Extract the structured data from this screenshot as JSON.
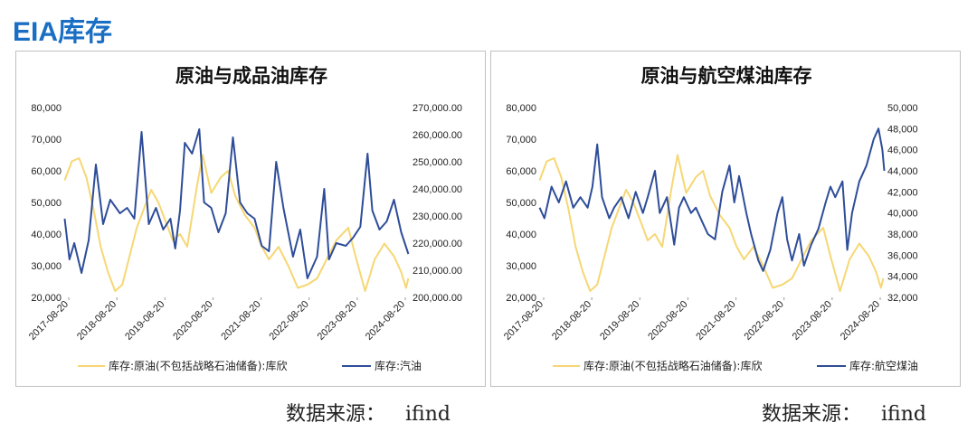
{
  "page": {
    "title": "EIA库存",
    "source_label": "数据来源：",
    "source_value": "ifind"
  },
  "colors": {
    "accent": "#1a6fc4",
    "crude": "#f6d774",
    "secondary": "#2e4d99"
  },
  "chart_data": [
    {
      "type": "line",
      "title": "原油与成品油库存",
      "x_ticks": [
        "2017-08-20",
        "2018-08-20",
        "2019-08-20",
        "2020-08-20",
        "2021-08-20",
        "2022-08-20",
        "2023-08-20",
        "2024-08-20"
      ],
      "y_left": {
        "lim": [
          20000,
          80000
        ],
        "ticks": [
          "20,000",
          "30,000",
          "40,000",
          "50,000",
          "60,000",
          "70,000",
          "80,000"
        ]
      },
      "y_right": {
        "lim": [
          200000,
          270000
        ],
        "ticks": [
          "200,000.00",
          "210,000.00",
          "220,000.00",
          "230,000.00",
          "240,000.00",
          "250,000.00",
          "260,000.00",
          "270,000.00"
        ]
      },
      "legend_position": "bottom",
      "series": [
        {
          "name": "库存:原油(不包括战略石油储备):库欣",
          "axis": "left",
          "color": "#f6d774",
          "points": [
            [
              2017.55,
              57000
            ],
            [
              2017.7,
              63000
            ],
            [
              2017.85,
              64000
            ],
            [
              2018.0,
              58000
            ],
            [
              2018.15,
              48000
            ],
            [
              2018.3,
              36000
            ],
            [
              2018.45,
              28000
            ],
            [
              2018.6,
              22000
            ],
            [
              2018.75,
              24000
            ],
            [
              2018.9,
              33000
            ],
            [
              2019.05,
              42000
            ],
            [
              2019.2,
              48000
            ],
            [
              2019.35,
              54000
            ],
            [
              2019.5,
              50000
            ],
            [
              2019.65,
              44000
            ],
            [
              2019.8,
              38000
            ],
            [
              2019.95,
              40000
            ],
            [
              2020.1,
              36000
            ],
            [
              2020.3,
              55000
            ],
            [
              2020.42,
              65000
            ],
            [
              2020.6,
              53000
            ],
            [
              2020.8,
              58000
            ],
            [
              2020.95,
              60000
            ],
            [
              2021.1,
              52000
            ],
            [
              2021.3,
              46000
            ],
            [
              2021.5,
              42000
            ],
            [
              2021.65,
              36000
            ],
            [
              2021.8,
              32000
            ],
            [
              2022.0,
              36000
            ],
            [
              2022.2,
              30000
            ],
            [
              2022.4,
              23000
            ],
            [
              2022.6,
              24000
            ],
            [
              2022.8,
              26000
            ],
            [
              2023.0,
              32000
            ],
            [
              2023.2,
              38000
            ],
            [
              2023.45,
              42000
            ],
            [
              2023.6,
              33000
            ],
            [
              2023.8,
              22000
            ],
            [
              2024.0,
              32000
            ],
            [
              2024.2,
              37000
            ],
            [
              2024.4,
              33000
            ],
            [
              2024.55,
              28000
            ],
            [
              2024.65,
              23000
            ],
            [
              2024.7,
              26000
            ]
          ]
        },
        {
          "name": "库存:汽油",
          "axis": "right",
          "color": "#2e4d99",
          "points": [
            [
              2017.55,
              229000
            ],
            [
              2017.65,
              214000
            ],
            [
              2017.75,
              220000
            ],
            [
              2017.9,
              209000
            ],
            [
              2018.05,
              221000
            ],
            [
              2018.2,
              249000
            ],
            [
              2018.35,
              227000
            ],
            [
              2018.5,
              236000
            ],
            [
              2018.7,
              231000
            ],
            [
              2018.85,
              233000
            ],
            [
              2019.0,
              229000
            ],
            [
              2019.15,
              261000
            ],
            [
              2019.3,
              227000
            ],
            [
              2019.45,
              233000
            ],
            [
              2019.6,
              225000
            ],
            [
              2019.75,
              229000
            ],
            [
              2019.85,
              218000
            ],
            [
              2019.95,
              232000
            ],
            [
              2020.05,
              257000
            ],
            [
              2020.2,
              253000
            ],
            [
              2020.35,
              262000
            ],
            [
              2020.45,
              235000
            ],
            [
              2020.6,
              233000
            ],
            [
              2020.75,
              224000
            ],
            [
              2020.9,
              231000
            ],
            [
              2021.05,
              259000
            ],
            [
              2021.2,
              235000
            ],
            [
              2021.35,
              231000
            ],
            [
              2021.5,
              229000
            ],
            [
              2021.65,
              219000
            ],
            [
              2021.8,
              217000
            ],
            [
              2021.95,
              250000
            ],
            [
              2022.1,
              233000
            ],
            [
              2022.3,
              215000
            ],
            [
              2022.45,
              225000
            ],
            [
              2022.6,
              207000
            ],
            [
              2022.8,
              215000
            ],
            [
              2022.95,
              240000
            ],
            [
              2023.05,
              214000
            ],
            [
              2023.2,
              220000
            ],
            [
              2023.4,
              219000
            ],
            [
              2023.55,
              222000
            ],
            [
              2023.7,
              226000
            ],
            [
              2023.85,
              253000
            ],
            [
              2023.95,
              232000
            ],
            [
              2024.1,
              225000
            ],
            [
              2024.25,
              228000
            ],
            [
              2024.4,
              236000
            ],
            [
              2024.55,
              224000
            ],
            [
              2024.7,
              216000
            ]
          ]
        }
      ]
    },
    {
      "type": "line",
      "title": "原油与航空煤油库存",
      "x_ticks": [
        "2017-08-20",
        "2018-08-20",
        "2019-08-20",
        "2020-08-20",
        "2021-08-20",
        "2022-08-20",
        "2023-08-20",
        "2024-08-20"
      ],
      "y_left": {
        "lim": [
          20000,
          80000
        ],
        "ticks": [
          "20,000",
          "30,000",
          "40,000",
          "50,000",
          "60,000",
          "70,000",
          "80,000"
        ]
      },
      "y_right": {
        "lim": [
          32000,
          50000
        ],
        "ticks": [
          "32,000",
          "34,000",
          "36,000",
          "38,000",
          "40,000",
          "42,000",
          "44,000",
          "46,000",
          "48,000",
          "50,000"
        ]
      },
      "legend_position": "bottom",
      "series": [
        {
          "name": "库存:原油(不包括战略石油储备):库欣",
          "axis": "left",
          "color": "#f6d774",
          "points": [
            [
              2017.55,
              57000
            ],
            [
              2017.7,
              63000
            ],
            [
              2017.85,
              64000
            ],
            [
              2018.0,
              58000
            ],
            [
              2018.15,
              48000
            ],
            [
              2018.3,
              36000
            ],
            [
              2018.45,
              28000
            ],
            [
              2018.6,
              22000
            ],
            [
              2018.75,
              24000
            ],
            [
              2018.9,
              33000
            ],
            [
              2019.05,
              42000
            ],
            [
              2019.2,
              48000
            ],
            [
              2019.35,
              54000
            ],
            [
              2019.5,
              50000
            ],
            [
              2019.65,
              44000
            ],
            [
              2019.8,
              38000
            ],
            [
              2019.95,
              40000
            ],
            [
              2020.1,
              36000
            ],
            [
              2020.3,
              55000
            ],
            [
              2020.42,
              65000
            ],
            [
              2020.6,
              53000
            ],
            [
              2020.8,
              58000
            ],
            [
              2020.95,
              60000
            ],
            [
              2021.1,
              52000
            ],
            [
              2021.3,
              46000
            ],
            [
              2021.5,
              42000
            ],
            [
              2021.65,
              36000
            ],
            [
              2021.8,
              32000
            ],
            [
              2022.0,
              36000
            ],
            [
              2022.2,
              30000
            ],
            [
              2022.4,
              23000
            ],
            [
              2022.6,
              24000
            ],
            [
              2022.8,
              26000
            ],
            [
              2023.0,
              32000
            ],
            [
              2023.2,
              38000
            ],
            [
              2023.45,
              42000
            ],
            [
              2023.6,
              33000
            ],
            [
              2023.8,
              22000
            ],
            [
              2024.0,
              32000
            ],
            [
              2024.2,
              37000
            ],
            [
              2024.4,
              33000
            ],
            [
              2024.55,
              28000
            ],
            [
              2024.65,
              23000
            ],
            [
              2024.7,
              26000
            ]
          ]
        },
        {
          "name": "库存:航空煤油",
          "axis": "right",
          "color": "#2e4d99",
          "points": [
            [
              2017.55,
              40500
            ],
            [
              2017.65,
              39500
            ],
            [
              2017.8,
              42500
            ],
            [
              2017.95,
              41000
            ],
            [
              2018.1,
              43000
            ],
            [
              2018.25,
              40500
            ],
            [
              2018.4,
              41500
            ],
            [
              2018.55,
              40500
            ],
            [
              2018.65,
              42500
            ],
            [
              2018.75,
              46500
            ],
            [
              2018.85,
              41500
            ],
            [
              2019.0,
              39500
            ],
            [
              2019.1,
              40500
            ],
            [
              2019.25,
              41500
            ],
            [
              2019.4,
              39500
            ],
            [
              2019.55,
              42000
            ],
            [
              2019.7,
              40000
            ],
            [
              2019.8,
              41500
            ],
            [
              2019.95,
              44000
            ],
            [
              2020.05,
              40000
            ],
            [
              2020.2,
              41500
            ],
            [
              2020.35,
              37000
            ],
            [
              2020.45,
              40500
            ],
            [
              2020.55,
              41500
            ],
            [
              2020.7,
              40000
            ],
            [
              2020.8,
              40500
            ],
            [
              2020.95,
              39000
            ],
            [
              2021.05,
              38000
            ],
            [
              2021.2,
              37500
            ],
            [
              2021.35,
              42000
            ],
            [
              2021.5,
              44500
            ],
            [
              2021.6,
              41000
            ],
            [
              2021.7,
              43500
            ],
            [
              2021.85,
              40000
            ],
            [
              2021.95,
              38000
            ],
            [
              2022.1,
              35500
            ],
            [
              2022.2,
              34500
            ],
            [
              2022.35,
              36500
            ],
            [
              2022.5,
              40000
            ],
            [
              2022.6,
              41500
            ],
            [
              2022.7,
              37500
            ],
            [
              2022.8,
              35500
            ],
            [
              2022.95,
              38000
            ],
            [
              2023.05,
              35000
            ],
            [
              2023.2,
              37000
            ],
            [
              2023.35,
              38500
            ],
            [
              2023.5,
              41000
            ],
            [
              2023.6,
              42500
            ],
            [
              2023.7,
              41500
            ],
            [
              2023.85,
              43000
            ],
            [
              2023.95,
              36500
            ],
            [
              2024.05,
              40000
            ],
            [
              2024.2,
              43000
            ],
            [
              2024.35,
              44500
            ],
            [
              2024.5,
              47000
            ],
            [
              2024.6,
              48000
            ],
            [
              2024.68,
              46000
            ],
            [
              2024.72,
              44000
            ]
          ]
        }
      ]
    }
  ]
}
